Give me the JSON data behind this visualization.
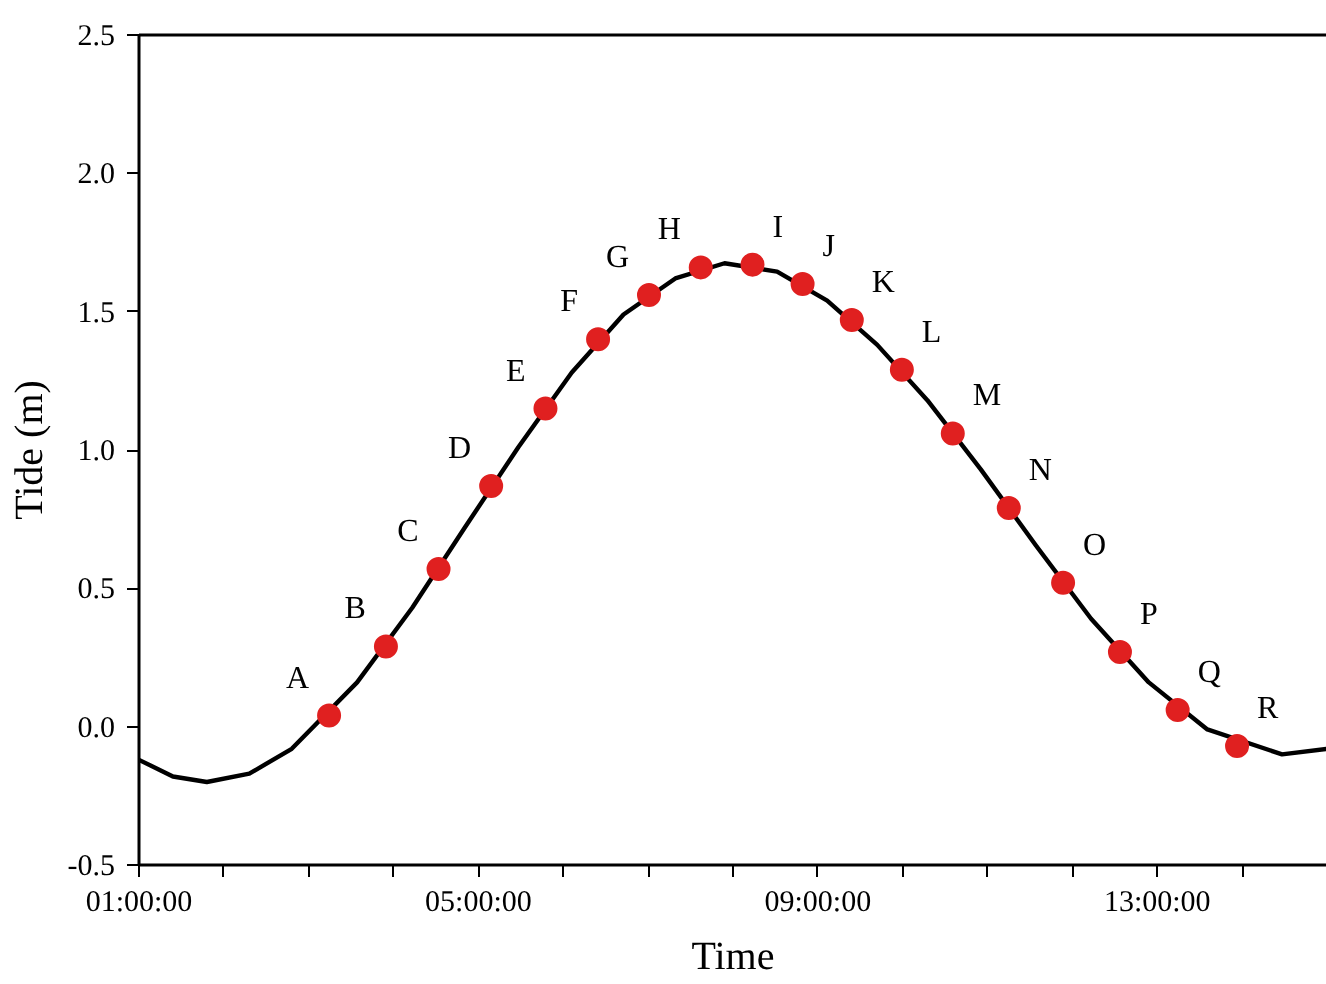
{
  "chart_data": {
    "type": "line",
    "xlabel": "Time",
    "ylabel": "Tide (m)",
    "xlim": [
      1,
      15
    ],
    "ylim": [
      -0.5,
      2.5
    ],
    "xticks": [
      {
        "value": 1,
        "label": "01:00:00"
      },
      {
        "value": 2,
        "label": null
      },
      {
        "value": 3,
        "label": null
      },
      {
        "value": 4,
        "label": null
      },
      {
        "value": 5,
        "label": "05:00:00"
      },
      {
        "value": 6,
        "label": null
      },
      {
        "value": 7,
        "label": null
      },
      {
        "value": 8,
        "label": null
      },
      {
        "value": 9,
        "label": "09:00:00"
      },
      {
        "value": 10,
        "label": null
      },
      {
        "value": 11,
        "label": null
      },
      {
        "value": 12,
        "label": null
      },
      {
        "value": 13,
        "label": "13:00:00"
      },
      {
        "value": 14,
        "label": null
      }
    ],
    "yticks": [
      -0.5,
      {
        "value": 0,
        "label": "0.0"
      },
      0.5,
      {
        "value": 1,
        "label": "1.0"
      },
      1.5,
      {
        "value": 2,
        "label": "2.0"
      },
      2.5
    ],
    "grid": false,
    "series": [
      {
        "color": "#000000",
        "line_style": "solid",
        "x": [
          1.0,
          1.4,
          1.8,
          2.3,
          2.8,
          3.57,
          4.22,
          4.84,
          5.47,
          6.1,
          6.71,
          7.32,
          7.9,
          8.52,
          9.11,
          9.7,
          10.29,
          10.92,
          11.57,
          12.22,
          12.9,
          13.59,
          14.47,
          15.0
        ],
        "values": [
          -0.12,
          -0.18,
          -0.2,
          -0.17,
          -0.08,
          0.16,
          0.43,
          0.72,
          1.01,
          1.28,
          1.49,
          1.62,
          1.675,
          1.645,
          1.54,
          1.38,
          1.18,
          0.93,
          0.655,
          0.39,
          0.16,
          -0.01,
          -0.1,
          -0.08
        ]
      },
      {
        "type": "scatter",
        "color": "#e02020",
        "marker": "circle",
        "x": [
          3.24,
          3.91,
          4.53,
          5.15,
          5.79,
          6.41,
          7.01,
          7.62,
          8.23,
          8.82,
          9.4,
          9.99,
          10.59,
          11.25,
          11.89,
          12.56,
          13.24,
          13.94
        ],
        "values": [
          0.04,
          0.29,
          0.57,
          0.87,
          1.15,
          1.4,
          1.56,
          1.66,
          1.67,
          1.6,
          1.47,
          1.29,
          1.06,
          0.79,
          0.52,
          0.27,
          0.06,
          -0.07
        ]
      }
    ],
    "annotations": [
      {
        "text": "A",
        "x": 3.24,
        "y": 0.04
      },
      {
        "text": "B",
        "x": 3.91,
        "y": 0.29
      },
      {
        "text": "C",
        "x": 4.53,
        "y": 0.57
      },
      {
        "text": "D",
        "x": 5.15,
        "y": 0.87
      },
      {
        "text": "E",
        "x": 5.79,
        "y": 1.15
      },
      {
        "text": "F",
        "x": 6.41,
        "y": 1.4
      },
      {
        "text": "G",
        "x": 7.01,
        "y": 1.56
      },
      {
        "text": "H",
        "x": 7.62,
        "y": 1.66
      },
      {
        "text": "I",
        "x": 8.23,
        "y": 1.67
      },
      {
        "text": "J",
        "x": 8.82,
        "y": 1.6
      },
      {
        "text": "K",
        "x": 9.4,
        "y": 1.47
      },
      {
        "text": "L",
        "x": 9.99,
        "y": 1.29
      },
      {
        "text": "M",
        "x": 10.59,
        "y": 1.06
      },
      {
        "text": "N",
        "x": 11.25,
        "y": 0.79
      },
      {
        "text": "O",
        "x": 11.89,
        "y": 0.52
      },
      {
        "text": "P",
        "x": 12.56,
        "y": 0.27
      },
      {
        "text": "Q",
        "x": 13.24,
        "y": 0.06
      },
      {
        "text": "R",
        "x": 13.94,
        "y": -0.07
      }
    ]
  }
}
